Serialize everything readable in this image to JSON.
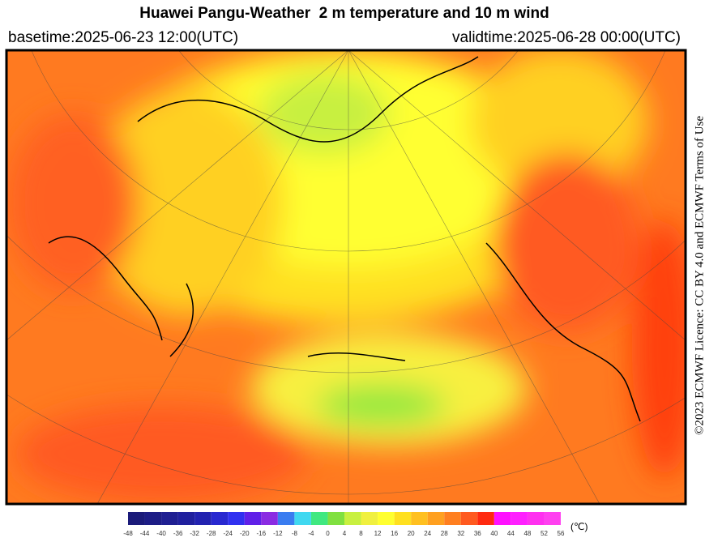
{
  "header": {
    "title": "Huawei Pangu-Weather  2 m temperature and 10 m wind",
    "basetime": "basetime:2025-06-23 12:00(UTC)",
    "validtime": "validtime:2025-06-28 00:00(UTC)"
  },
  "license": "©2023 ECMWF Licence: CC BY 4.0 and ECMWF Terms of Use",
  "colorbar": {
    "ticks": [
      -48,
      -44,
      -40,
      -36,
      -32,
      -28,
      -24,
      -20,
      -16,
      -12,
      -8,
      -4,
      0,
      4,
      8,
      12,
      16,
      20,
      24,
      28,
      32,
      36,
      40,
      44,
      48,
      52,
      56
    ],
    "colors": [
      "#1b1b7a",
      "#1d1d86",
      "#1f1f92",
      "#20209e",
      "#2222b0",
      "#2828d0",
      "#3030f0",
      "#6020e8",
      "#8a2be2",
      "#3a7cf0",
      "#40d8f0",
      "#40e880",
      "#80e040",
      "#c8f040",
      "#f0f040",
      "#ffff30",
      "#ffe020",
      "#ffc020",
      "#ffa020",
      "#ff7f20",
      "#ff5a20",
      "#ff2a10",
      "#ff10ff",
      "#ff20ff",
      "#ff30f0",
      "#ff40f0"
    ],
    "unit": "(℃)"
  }
}
